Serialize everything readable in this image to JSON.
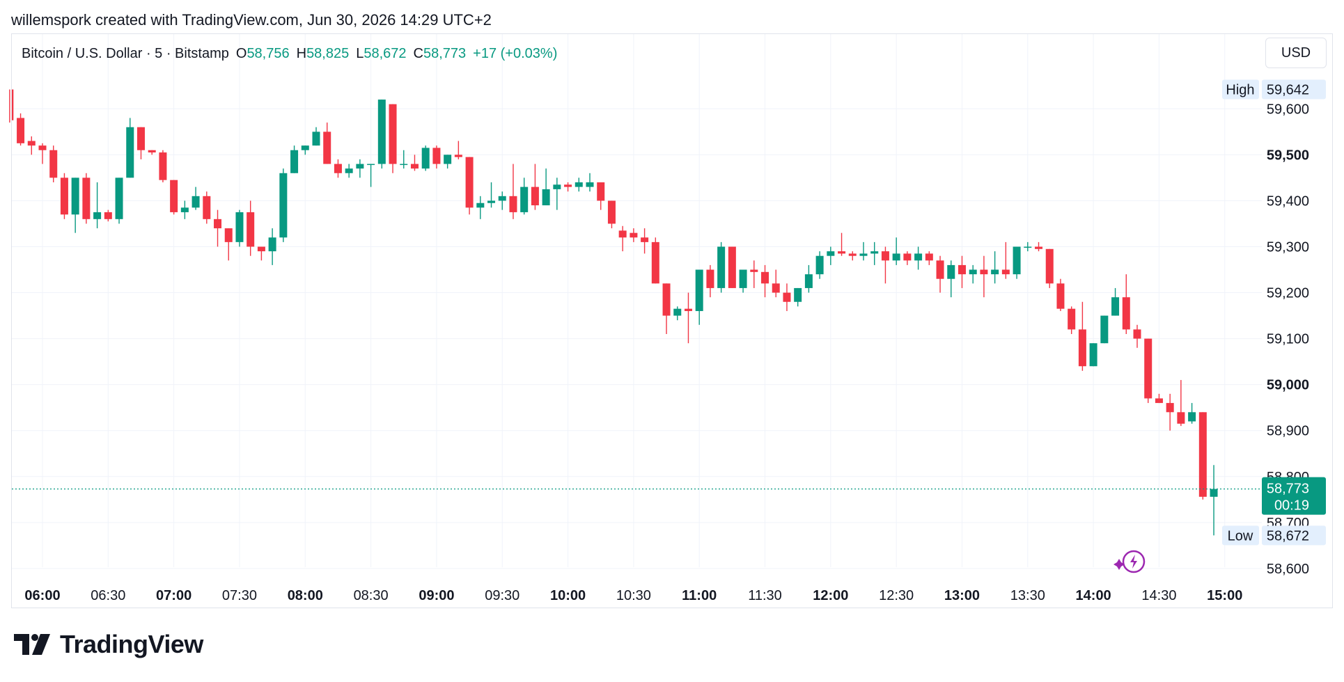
{
  "attribution": "willemspork created with TradingView.com, Jun 30, 2026 14:29 UTC+2",
  "legend": {
    "symbol": "Bitcoin / U.S. Dollar · 5 · Bitstamp",
    "o_label": "O",
    "o_value": "58,756",
    "h_label": "H",
    "h_value": "58,825",
    "l_label": "L",
    "l_value": "58,672",
    "c_label": "C",
    "c_value": "58,773",
    "change": "+17 (+0.03%)"
  },
  "currency": "USD",
  "brand": "TradingView",
  "colors": {
    "up": "#089981",
    "down": "#F23645",
    "grid": "#F0F3FA",
    "text": "#131722",
    "marker": "#9C27B0"
  },
  "markers": {
    "high": {
      "label": "High",
      "value": "59,642"
    },
    "low": {
      "label": "Low",
      "value": "58,672"
    },
    "last": {
      "value": "58,773",
      "countdown": "00:19"
    }
  },
  "chart_data": {
    "type": "candlestick",
    "interval": "5m",
    "y_ticks": [
      {
        "value": 59600,
        "label": "59,600",
        "bold": false
      },
      {
        "value": 59500,
        "label": "59,500",
        "bold": true
      },
      {
        "value": 59400,
        "label": "59,400",
        "bold": false
      },
      {
        "value": 59300,
        "label": "59,300",
        "bold": false
      },
      {
        "value": 59200,
        "label": "59,200",
        "bold": false
      },
      {
        "value": 59100,
        "label": "59,100",
        "bold": false
      },
      {
        "value": 59000,
        "label": "59,000",
        "bold": true
      },
      {
        "value": 58900,
        "label": "58,900",
        "bold": false
      },
      {
        "value": 58800,
        "label": "58,800",
        "bold": false
      },
      {
        "value": 58700,
        "label": "58,700",
        "bold": false
      },
      {
        "value": 58600,
        "label": "58,600",
        "bold": false
      }
    ],
    "x_ticks": [
      {
        "slot": 0,
        "label": "06:00",
        "bold": true
      },
      {
        "slot": 6,
        "label": "06:30",
        "bold": false
      },
      {
        "slot": 12,
        "label": "07:00",
        "bold": true
      },
      {
        "slot": 18,
        "label": "07:30",
        "bold": false
      },
      {
        "slot": 24,
        "label": "08:00",
        "bold": true
      },
      {
        "slot": 30,
        "label": "08:30",
        "bold": false
      },
      {
        "slot": 36,
        "label": "09:00",
        "bold": true
      },
      {
        "slot": 42,
        "label": "09:30",
        "bold": false
      },
      {
        "slot": 48,
        "label": "10:00",
        "bold": true
      },
      {
        "slot": 54,
        "label": "10:30",
        "bold": false
      },
      {
        "slot": 60,
        "label": "11:00",
        "bold": true
      },
      {
        "slot": 66,
        "label": "11:30",
        "bold": false
      },
      {
        "slot": 72,
        "label": "12:00",
        "bold": true
      },
      {
        "slot": 78,
        "label": "12:30",
        "bold": false
      },
      {
        "slot": 84,
        "label": "13:00",
        "bold": true
      },
      {
        "slot": 90,
        "label": "13:30",
        "bold": false
      },
      {
        "slot": 96,
        "label": "14:00",
        "bold": true
      },
      {
        "slot": 102,
        "label": "14:30",
        "bold": false
      },
      {
        "slot": 108,
        "label": "15:00",
        "bold": true
      }
    ],
    "y_range": [
      58560,
      59700
    ],
    "first_slot": -3,
    "candles": [
      [
        59642,
        59642,
        59570,
        59575
      ],
      [
        59580,
        59590,
        59520,
        59525
      ],
      [
        59530,
        59540,
        59500,
        59520
      ],
      [
        59520,
        59525,
        59480,
        59510
      ],
      [
        59510,
        59520,
        59440,
        59450
      ],
      [
        59450,
        59460,
        59360,
        59370
      ],
      [
        59370,
        59450,
        59330,
        59450
      ],
      [
        59450,
        59460,
        59350,
        59360
      ],
      [
        59360,
        59440,
        59340,
        59375
      ],
      [
        59375,
        59380,
        59355,
        59360
      ],
      [
        59360,
        59450,
        59350,
        59450
      ],
      [
        59450,
        59580,
        59450,
        59560
      ],
      [
        59560,
        59560,
        59490,
        59510
      ],
      [
        59510,
        59510,
        59500,
        59505
      ],
      [
        59505,
        59510,
        59440,
        59445
      ],
      [
        59445,
        59445,
        59370,
        59375
      ],
      [
        59375,
        59400,
        59360,
        59385
      ],
      [
        59385,
        59430,
        59380,
        59410
      ],
      [
        59410,
        59420,
        59350,
        59360
      ],
      [
        59360,
        59380,
        59300,
        59340
      ],
      [
        59340,
        59340,
        59270,
        59310
      ],
      [
        59310,
        59380,
        59300,
        59375
      ],
      [
        59375,
        59400,
        59280,
        59300
      ],
      [
        59300,
        59300,
        59270,
        59290
      ],
      [
        59290,
        59340,
        59260,
        59320
      ],
      [
        59320,
        59470,
        59310,
        59460
      ],
      [
        59460,
        59520,
        59460,
        59510
      ],
      [
        59510,
        59520,
        59500,
        59520
      ],
      [
        59520,
        59560,
        59520,
        59550
      ],
      [
        59550,
        59570,
        59480,
        59480
      ],
      [
        59480,
        59490,
        59450,
        59460
      ],
      [
        59460,
        59480,
        59450,
        59470
      ],
      [
        59470,
        59490,
        59450,
        59480
      ],
      [
        59480,
        59480,
        59430,
        59480
      ],
      [
        59480,
        59620,
        59470,
        59620
      ],
      [
        59610,
        59610,
        59460,
        59480
      ],
      [
        59480,
        59510,
        59470,
        59480
      ],
      [
        59480,
        59500,
        59465,
        59470
      ],
      [
        59470,
        59520,
        59465,
        59515
      ],
      [
        59515,
        59520,
        59470,
        59480
      ],
      [
        59480,
        59500,
        59470,
        59500
      ],
      [
        59500,
        59530,
        59490,
        59495
      ],
      [
        59495,
        59495,
        59370,
        59385
      ],
      [
        59385,
        59410,
        59360,
        59395
      ],
      [
        59395,
        59440,
        59385,
        59400
      ],
      [
        59400,
        59420,
        59380,
        59410
      ],
      [
        59410,
        59480,
        59360,
        59375
      ],
      [
        59375,
        59450,
        59370,
        59430
      ],
      [
        59430,
        59480,
        59380,
        59390
      ],
      [
        59390,
        59470,
        59390,
        59425
      ],
      [
        59425,
        59450,
        59380,
        59435
      ],
      [
        59435,
        59440,
        59420,
        59430
      ],
      [
        59430,
        59450,
        59420,
        59440
      ],
      [
        59430,
        59460,
        59420,
        59440
      ],
      [
        59440,
        59440,
        59380,
        59400
      ],
      [
        59400,
        59400,
        59340,
        59350
      ],
      [
        59335,
        59345,
        59290,
        59320
      ],
      [
        59330,
        59340,
        59310,
        59320
      ],
      [
        59320,
        59340,
        59285,
        59310
      ],
      [
        59310,
        59320,
        59220,
        59220
      ],
      [
        59220,
        59220,
        59110,
        59150
      ],
      [
        59150,
        59170,
        59140,
        59165
      ],
      [
        59165,
        59200,
        59090,
        59160
      ],
      [
        59160,
        59250,
        59130,
        59250
      ],
      [
        59250,
        59260,
        59190,
        59210
      ],
      [
        59210,
        59310,
        59200,
        59300
      ],
      [
        59300,
        59300,
        59210,
        59210
      ],
      [
        59210,
        59250,
        59200,
        59250
      ],
      [
        59250,
        59270,
        59210,
        59245
      ],
      [
        59245,
        59260,
        59190,
        59220
      ],
      [
        59220,
        59250,
        59190,
        59200
      ],
      [
        59200,
        59220,
        59160,
        59180
      ],
      [
        59180,
        59210,
        59170,
        59210
      ],
      [
        59210,
        59260,
        59200,
        59240
      ],
      [
        59240,
        59290,
        59230,
        59280
      ],
      [
        59280,
        59300,
        59260,
        59290
      ],
      [
        59290,
        59330,
        59280,
        59285
      ],
      [
        59285,
        59290,
        59270,
        59280
      ],
      [
        59280,
        59310,
        59270,
        59285
      ],
      [
        59285,
        59310,
        59260,
        59290
      ],
      [
        59290,
        59300,
        59220,
        59270
      ],
      [
        59270,
        59320,
        59260,
        59285
      ],
      [
        59285,
        59290,
        59260,
        59270
      ],
      [
        59270,
        59300,
        59250,
        59285
      ],
      [
        59285,
        59290,
        59260,
        59270
      ],
      [
        59270,
        59280,
        59200,
        59230
      ],
      [
        59230,
        59270,
        59190,
        59260
      ],
      [
        59260,
        59280,
        59210,
        59240
      ],
      [
        59240,
        59260,
        59220,
        59250
      ],
      [
        59250,
        59280,
        59190,
        59240
      ],
      [
        59240,
        59290,
        59220,
        59250
      ],
      [
        59250,
        59310,
        59230,
        59240
      ],
      [
        59240,
        59300,
        59230,
        59300
      ],
      [
        59300,
        59310,
        59290,
        59300
      ],
      [
        59300,
        59310,
        59290,
        59295
      ],
      [
        59295,
        59295,
        59210,
        59220
      ],
      [
        59220,
        59230,
        59160,
        59165
      ],
      [
        59165,
        59170,
        59110,
        59120
      ],
      [
        59120,
        59180,
        59030,
        59040
      ],
      [
        59040,
        59090,
        59040,
        59090
      ],
      [
        59090,
        59150,
        59090,
        59150
      ],
      [
        59150,
        59210,
        59150,
        59190
      ],
      [
        59190,
        59240,
        59110,
        59120
      ],
      [
        59120,
        59130,
        59080,
        59100
      ],
      [
        59100,
        59100,
        58960,
        58970
      ],
      [
        58970,
        58980,
        58960,
        58960
      ],
      [
        58960,
        58980,
        58900,
        58940
      ],
      [
        58940,
        59010,
        58910,
        58915
      ],
      [
        58920,
        58960,
        58915,
        58940
      ],
      [
        58940,
        58940,
        58750,
        58756
      ],
      [
        58756,
        58825,
        58672,
        58773
      ]
    ]
  }
}
